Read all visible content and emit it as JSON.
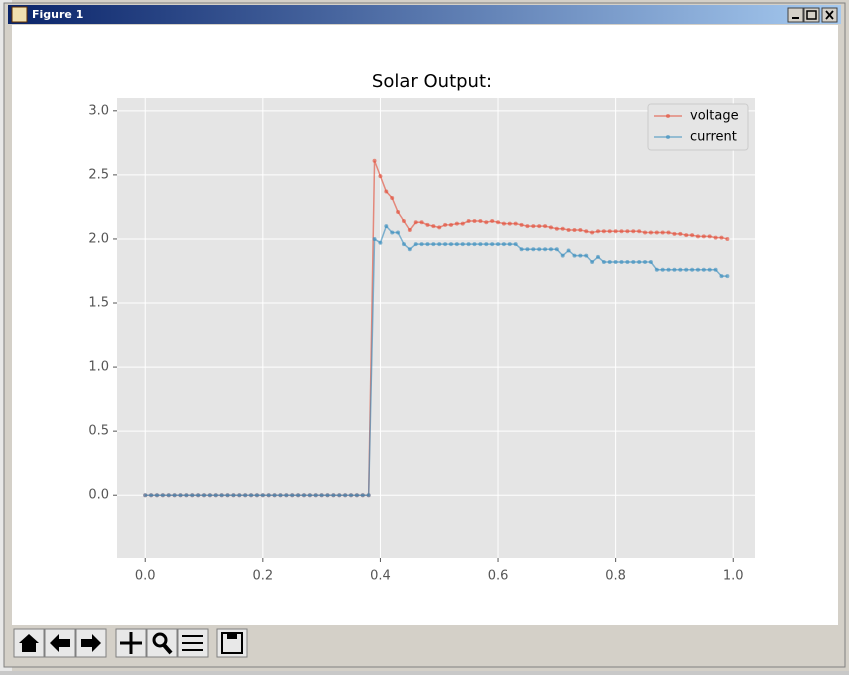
{
  "window": {
    "title": "Figure 1"
  },
  "chart_data": {
    "type": "line",
    "title": "Solar Output:",
    "x": [
      0.0,
      0.01,
      0.02,
      0.03,
      0.04,
      0.05,
      0.06,
      0.07,
      0.08,
      0.09,
      0.1,
      0.11,
      0.12,
      0.13,
      0.14,
      0.15,
      0.16,
      0.17,
      0.18,
      0.19,
      0.2,
      0.21,
      0.22,
      0.23,
      0.24,
      0.25,
      0.26,
      0.27,
      0.28,
      0.29,
      0.3,
      0.31,
      0.32,
      0.33,
      0.34,
      0.35,
      0.36,
      0.37,
      0.38,
      0.39,
      0.4,
      0.41,
      0.42,
      0.43,
      0.44,
      0.45,
      0.46,
      0.47,
      0.48,
      0.49,
      0.5,
      0.51,
      0.52,
      0.53,
      0.54,
      0.55,
      0.56,
      0.57,
      0.58,
      0.59,
      0.6,
      0.61,
      0.62,
      0.63,
      0.64,
      0.65,
      0.66,
      0.67,
      0.68,
      0.69,
      0.7,
      0.71,
      0.72,
      0.73,
      0.74,
      0.75,
      0.76,
      0.77,
      0.78,
      0.79,
      0.8,
      0.81,
      0.82,
      0.83,
      0.84,
      0.85,
      0.86,
      0.87,
      0.88,
      0.89,
      0.9,
      0.91,
      0.92,
      0.93,
      0.94,
      0.95,
      0.96,
      0.97,
      0.98,
      0.99
    ],
    "series": [
      {
        "name": "voltage",
        "color": "#E24A33",
        "values": [
          0,
          0,
          0,
          0,
          0,
          0,
          0,
          0,
          0,
          0,
          0,
          0,
          0,
          0,
          0,
          0,
          0,
          0,
          0,
          0,
          0,
          0,
          0,
          0,
          0,
          0,
          0,
          0,
          0,
          0,
          0,
          0,
          0,
          0,
          0,
          0,
          0,
          0,
          0,
          2.61,
          2.49,
          2.37,
          2.32,
          2.21,
          2.14,
          2.07,
          2.13,
          2.13,
          2.11,
          2.1,
          2.09,
          2.11,
          2.11,
          2.12,
          2.12,
          2.14,
          2.14,
          2.14,
          2.13,
          2.14,
          2.13,
          2.12,
          2.12,
          2.12,
          2.11,
          2.1,
          2.1,
          2.1,
          2.1,
          2.09,
          2.08,
          2.08,
          2.07,
          2.07,
          2.07,
          2.06,
          2.05,
          2.06,
          2.06,
          2.06,
          2.06,
          2.06,
          2.06,
          2.06,
          2.06,
          2.05,
          2.05,
          2.05,
          2.05,
          2.05,
          2.04,
          2.04,
          2.03,
          2.03,
          2.02,
          2.02,
          2.02,
          2.01,
          2.01,
          2.0
        ]
      },
      {
        "name": "current",
        "color": "#348ABD",
        "values": [
          0,
          0,
          0,
          0,
          0,
          0,
          0,
          0,
          0,
          0,
          0,
          0,
          0,
          0,
          0,
          0,
          0,
          0,
          0,
          0,
          0,
          0,
          0,
          0,
          0,
          0,
          0,
          0,
          0,
          0,
          0,
          0,
          0,
          0,
          0,
          0,
          0,
          0,
          0,
          2.0,
          1.97,
          2.1,
          2.05,
          2.05,
          1.96,
          1.92,
          1.96,
          1.96,
          1.96,
          1.96,
          1.96,
          1.96,
          1.96,
          1.96,
          1.96,
          1.96,
          1.96,
          1.96,
          1.96,
          1.96,
          1.96,
          1.96,
          1.96,
          1.96,
          1.92,
          1.92,
          1.92,
          1.92,
          1.92,
          1.92,
          1.92,
          1.87,
          1.91,
          1.87,
          1.87,
          1.87,
          1.82,
          1.86,
          1.82,
          1.82,
          1.82,
          1.82,
          1.82,
          1.82,
          1.82,
          1.82,
          1.82,
          1.76,
          1.76,
          1.76,
          1.76,
          1.76,
          1.76,
          1.76,
          1.76,
          1.76,
          1.76,
          1.76,
          1.71,
          1.71
        ]
      }
    ],
    "xlim": [
      -0.048,
      1.037
    ],
    "ylim": [
      -0.49,
      3.1
    ],
    "xticks": [
      {
        "value": 0,
        "label": "0.0"
      },
      0.2,
      0.4,
      0.6,
      0.8,
      {
        "value": 1,
        "label": "1.0"
      }
    ],
    "yticks": [
      {
        "value": 0,
        "label": "0.0"
      },
      0.5,
      {
        "value": 1,
        "label": "1.0"
      },
      1.5,
      {
        "value": 2,
        "label": "2.0"
      },
      2.5,
      {
        "value": 3,
        "label": "3.0"
      }
    ],
    "grid": true,
    "legend": "upper right"
  }
}
